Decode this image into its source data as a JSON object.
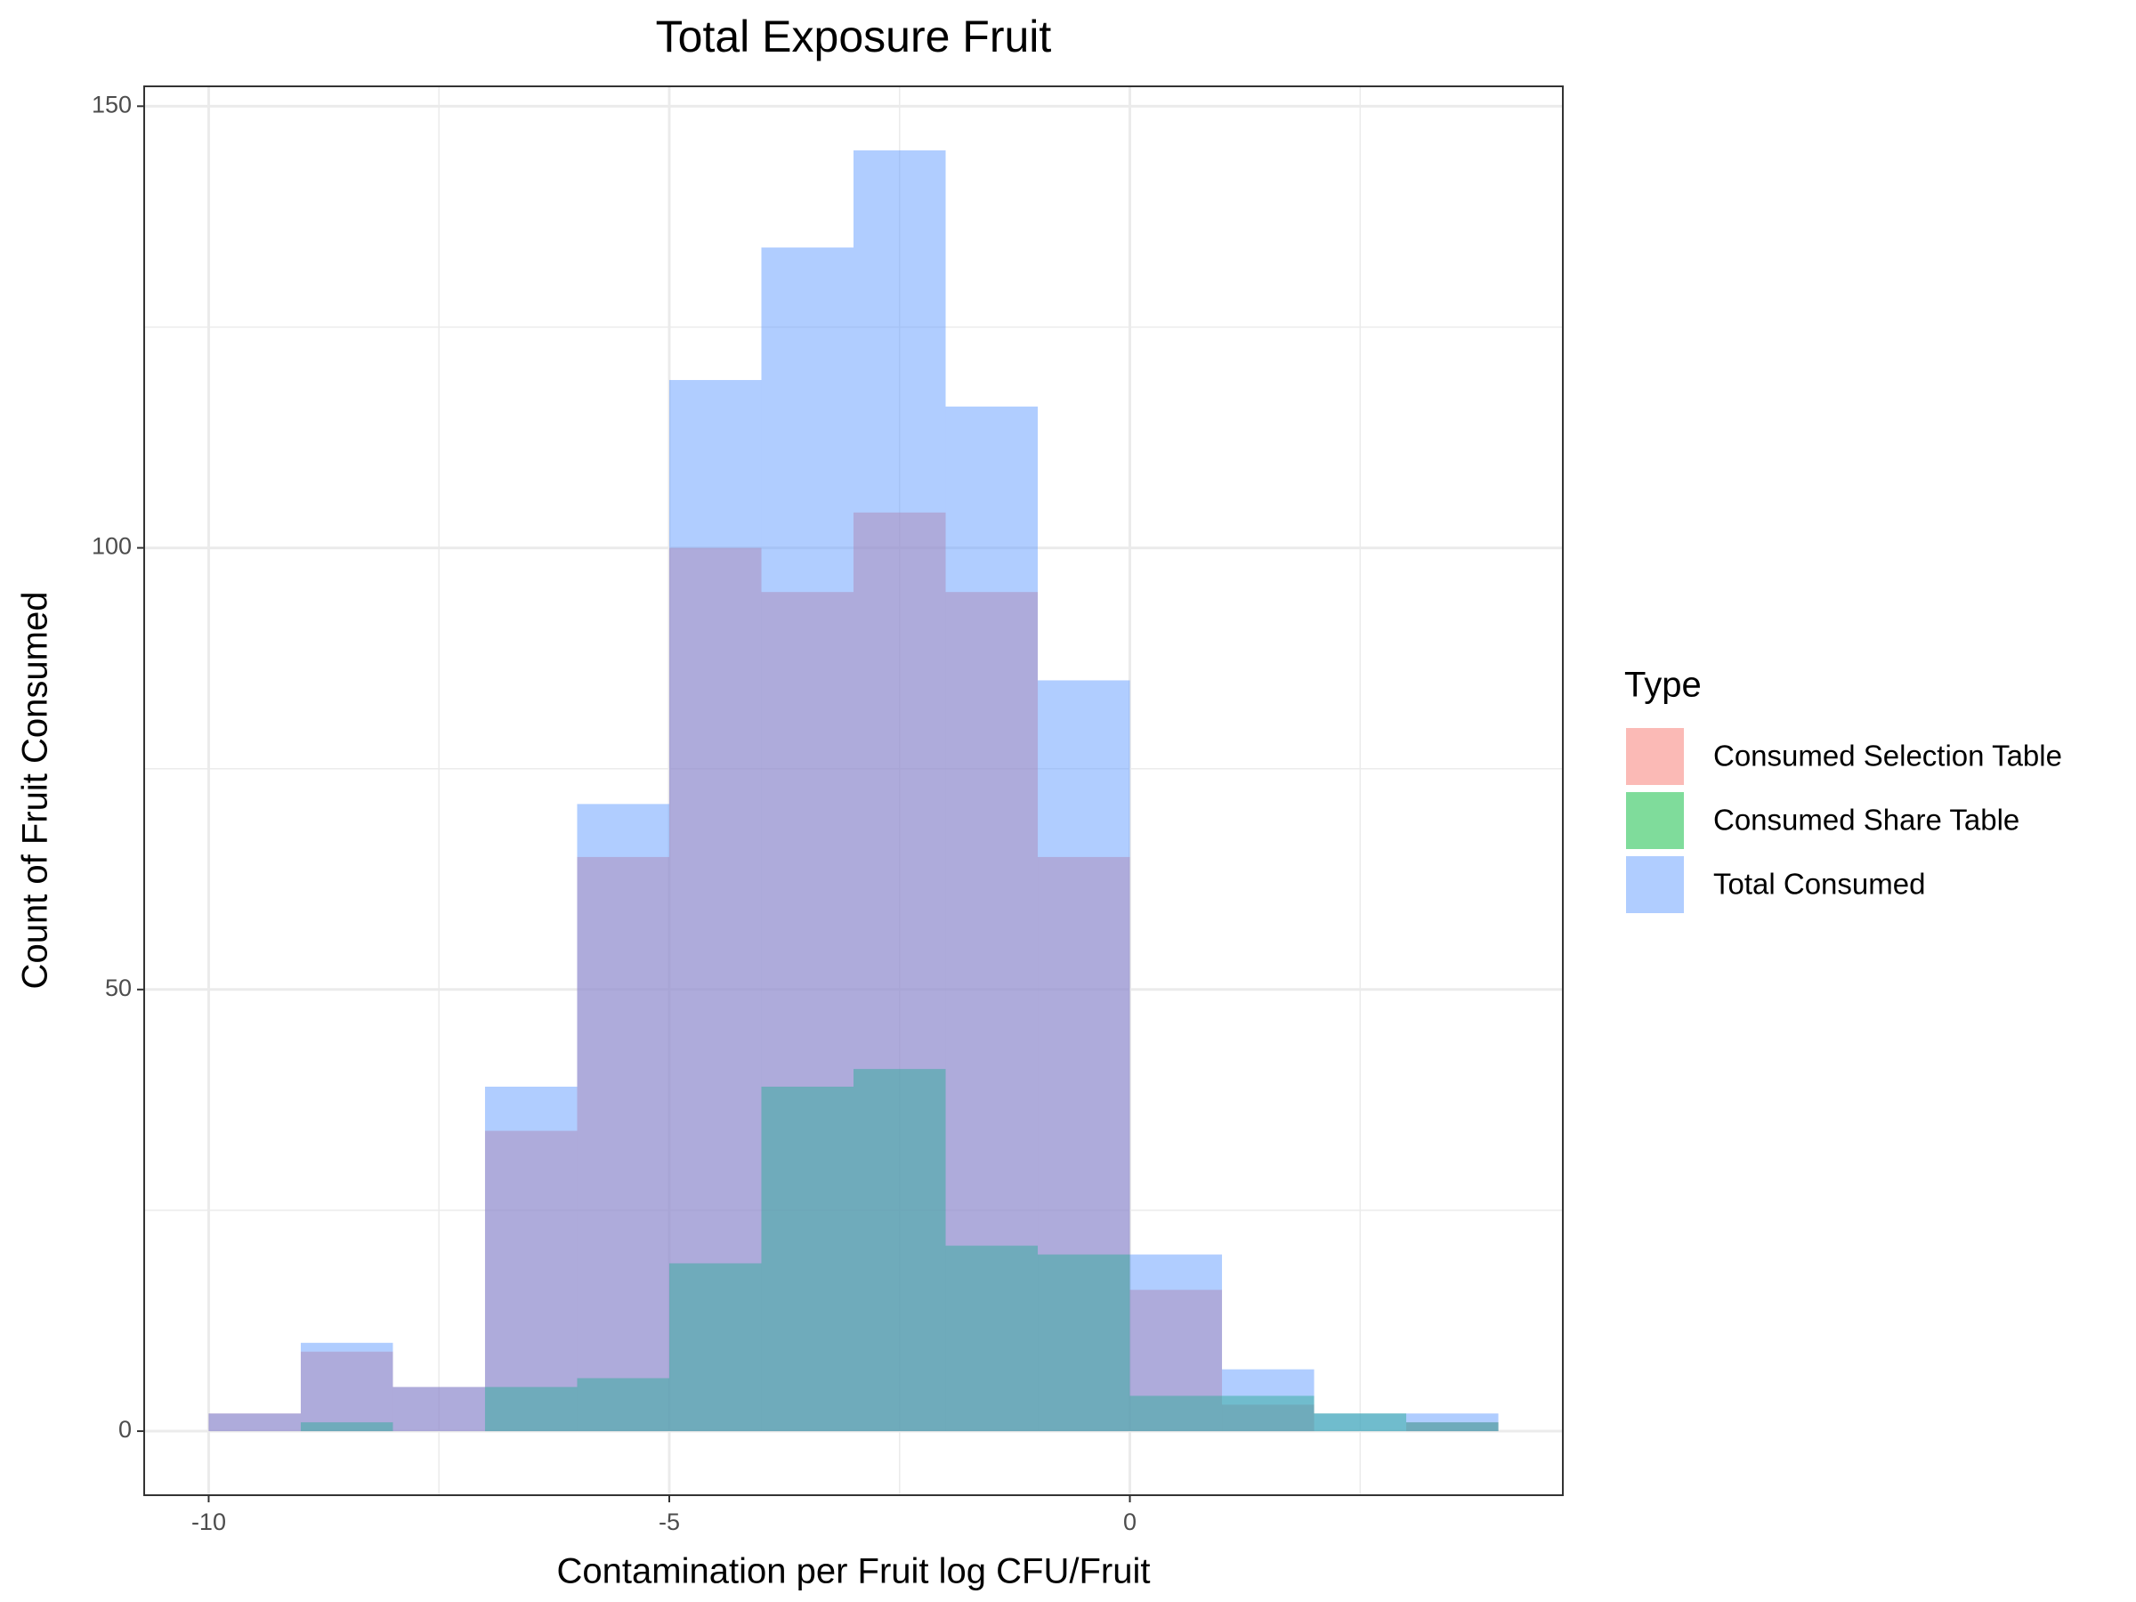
{
  "chart_data": {
    "type": "histogram",
    "title": "Total Exposure Fruit",
    "x_label": "Contamination per Fruit log CFU/Fruit",
    "y_label": "Count of Fruit Consumed",
    "legend_title": "Type",
    "legend_position": "right",
    "bins": [
      -10,
      -9,
      -8,
      -7,
      -6,
      -5,
      -4,
      -3,
      -2,
      -1,
      0,
      1,
      2,
      3,
      4
    ],
    "series": [
      {
        "name": "Consumed Selection Table",
        "color": "#F8766D",
        "values": [
          2,
          9,
          5,
          34,
          65,
          100,
          95,
          104,
          95,
          65,
          16,
          3,
          0,
          1
        ]
      },
      {
        "name": "Consumed Share Table",
        "color": "#00BA38",
        "values": [
          0,
          1,
          0,
          5,
          6,
          19,
          39,
          41,
          21,
          20,
          4,
          4,
          2,
          1
        ]
      },
      {
        "name": "Total Consumed",
        "color": "#619CFF",
        "values": [
          2,
          10,
          5,
          39,
          71,
          119,
          134,
          145,
          116,
          85,
          20,
          7,
          2,
          2
        ]
      }
    ],
    "opacity": 0.5,
    "xlim": [
      -10.7,
      4.7
    ],
    "xticks": [
      -10,
      -5,
      0
    ],
    "ylim": [
      -7.25,
      152.25
    ],
    "yticks": [
      0,
      50,
      100,
      150
    ],
    "grid": true
  }
}
